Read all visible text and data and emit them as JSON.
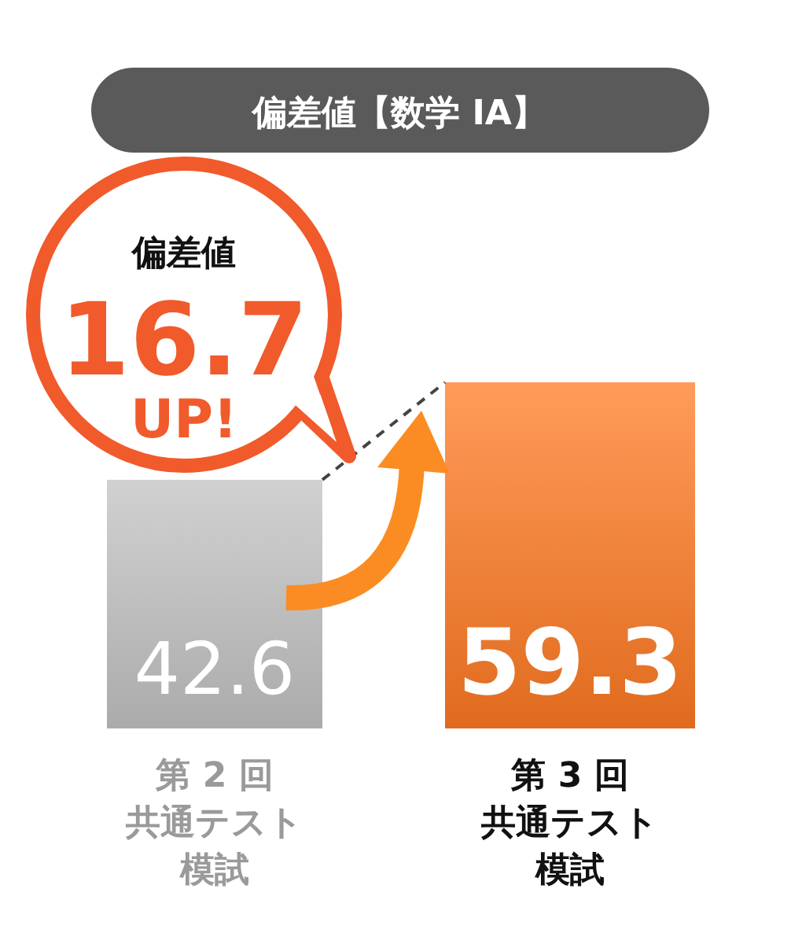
{
  "chart_data": {
    "type": "bar",
    "title": "偏差値【数学 IA】",
    "categories": [
      "第 2 回共通テスト模試",
      "第 3 回共通テスト模試"
    ],
    "values": [
      42.6,
      59.3
    ],
    "colors": [
      "#c2c2c2",
      "#ff7a22"
    ],
    "data_labels": true,
    "annotations": [
      "偏差値\n16.7\nUP!"
    ]
  }
}
